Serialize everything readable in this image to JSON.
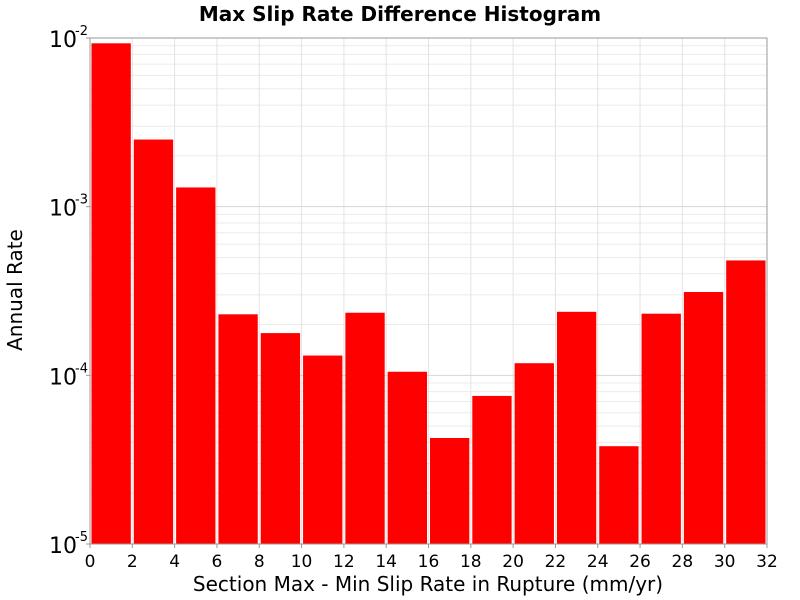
{
  "chart_data": {
    "type": "bar",
    "title": "Max Slip Rate Difference Histogram",
    "xlabel": "Section Max - Min Slip Rate in Rupture (mm/yr)",
    "ylabel": "Annual Rate",
    "y_scale": "log",
    "xlim": [
      0,
      32
    ],
    "ylim": [
      1e-05,
      0.01
    ],
    "x_ticks": [
      "0",
      "2",
      "4",
      "6",
      "8",
      "10",
      "12",
      "14",
      "16",
      "18",
      "20",
      "22",
      "24",
      "26",
      "28",
      "30",
      "32"
    ],
    "y_ticks": [
      {
        "base": "10",
        "exp": "-5"
      },
      {
        "base": "10",
        "exp": "-4"
      },
      {
        "base": "10",
        "exp": "-3"
      },
      {
        "base": "10",
        "exp": "-2"
      }
    ],
    "bin_width": 2,
    "bar_color": "#ff0000",
    "grid": true,
    "bars": [
      {
        "x": 1,
        "value": 0.0093
      },
      {
        "x": 3,
        "value": 0.0025
      },
      {
        "x": 5,
        "value": 0.0013
      },
      {
        "x": 7,
        "value": 0.00023
      },
      {
        "x": 9,
        "value": 0.000178
      },
      {
        "x": 11,
        "value": 0.000131
      },
      {
        "x": 13,
        "value": 0.000235
      },
      {
        "x": 15,
        "value": 0.000105
      },
      {
        "x": 17,
        "value": 4.25e-05
      },
      {
        "x": 19,
        "value": 7.55e-05
      },
      {
        "x": 21,
        "value": 0.000118
      },
      {
        "x": 23,
        "value": 0.000238
      },
      {
        "x": 25,
        "value": 3.8e-05
      },
      {
        "x": 27,
        "value": 0.000232
      },
      {
        "x": 29,
        "value": 0.000312
      },
      {
        "x": 31,
        "value": 0.00048
      }
    ]
  }
}
